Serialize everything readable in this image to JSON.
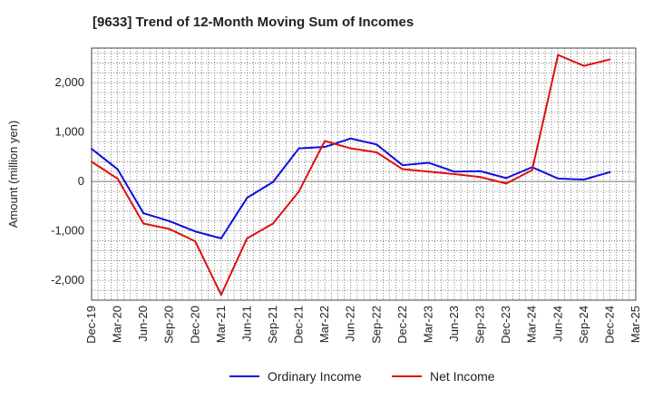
{
  "chart_data": {
    "type": "line",
    "title": "[9633]  Trend of 12-Month Moving Sum of Incomes",
    "xlabel": "",
    "ylabel": "Amount (million yen)",
    "ylim": [
      -2400,
      2700
    ],
    "yticks": [
      2000,
      1000,
      0,
      -1000,
      -2000
    ],
    "ytick_labels": [
      "2,000",
      "1,000",
      "0",
      "-1,000",
      "-2,000"
    ],
    "categories": [
      "Dec-19",
      "Mar-20",
      "Jun-20",
      "Sep-20",
      "Dec-20",
      "Mar-21",
      "Jun-21",
      "Sep-21",
      "Dec-21",
      "Mar-22",
      "Jun-22",
      "Sep-22",
      "Dec-22",
      "Mar-23",
      "Jun-23",
      "Sep-23",
      "Dec-23",
      "Mar-24",
      "Jun-24",
      "Sep-24",
      "Dec-24",
      "Mar-25"
    ],
    "grid": true,
    "legend_position": "bottom",
    "series": [
      {
        "name": "Ordinary Income",
        "color": "#1010dd",
        "values": [
          660,
          250,
          -640,
          -800,
          -1010,
          -1150,
          -330,
          -10,
          670,
          700,
          870,
          750,
          330,
          380,
          200,
          210,
          70,
          290,
          60,
          40,
          190,
          null
        ]
      },
      {
        "name": "Net Income",
        "color": "#dd1111",
        "values": [
          400,
          60,
          -850,
          -960,
          -1210,
          -2290,
          -1150,
          -850,
          -200,
          820,
          670,
          590,
          250,
          200,
          150,
          90,
          -40,
          230,
          2560,
          2340,
          2470,
          null
        ]
      }
    ]
  }
}
